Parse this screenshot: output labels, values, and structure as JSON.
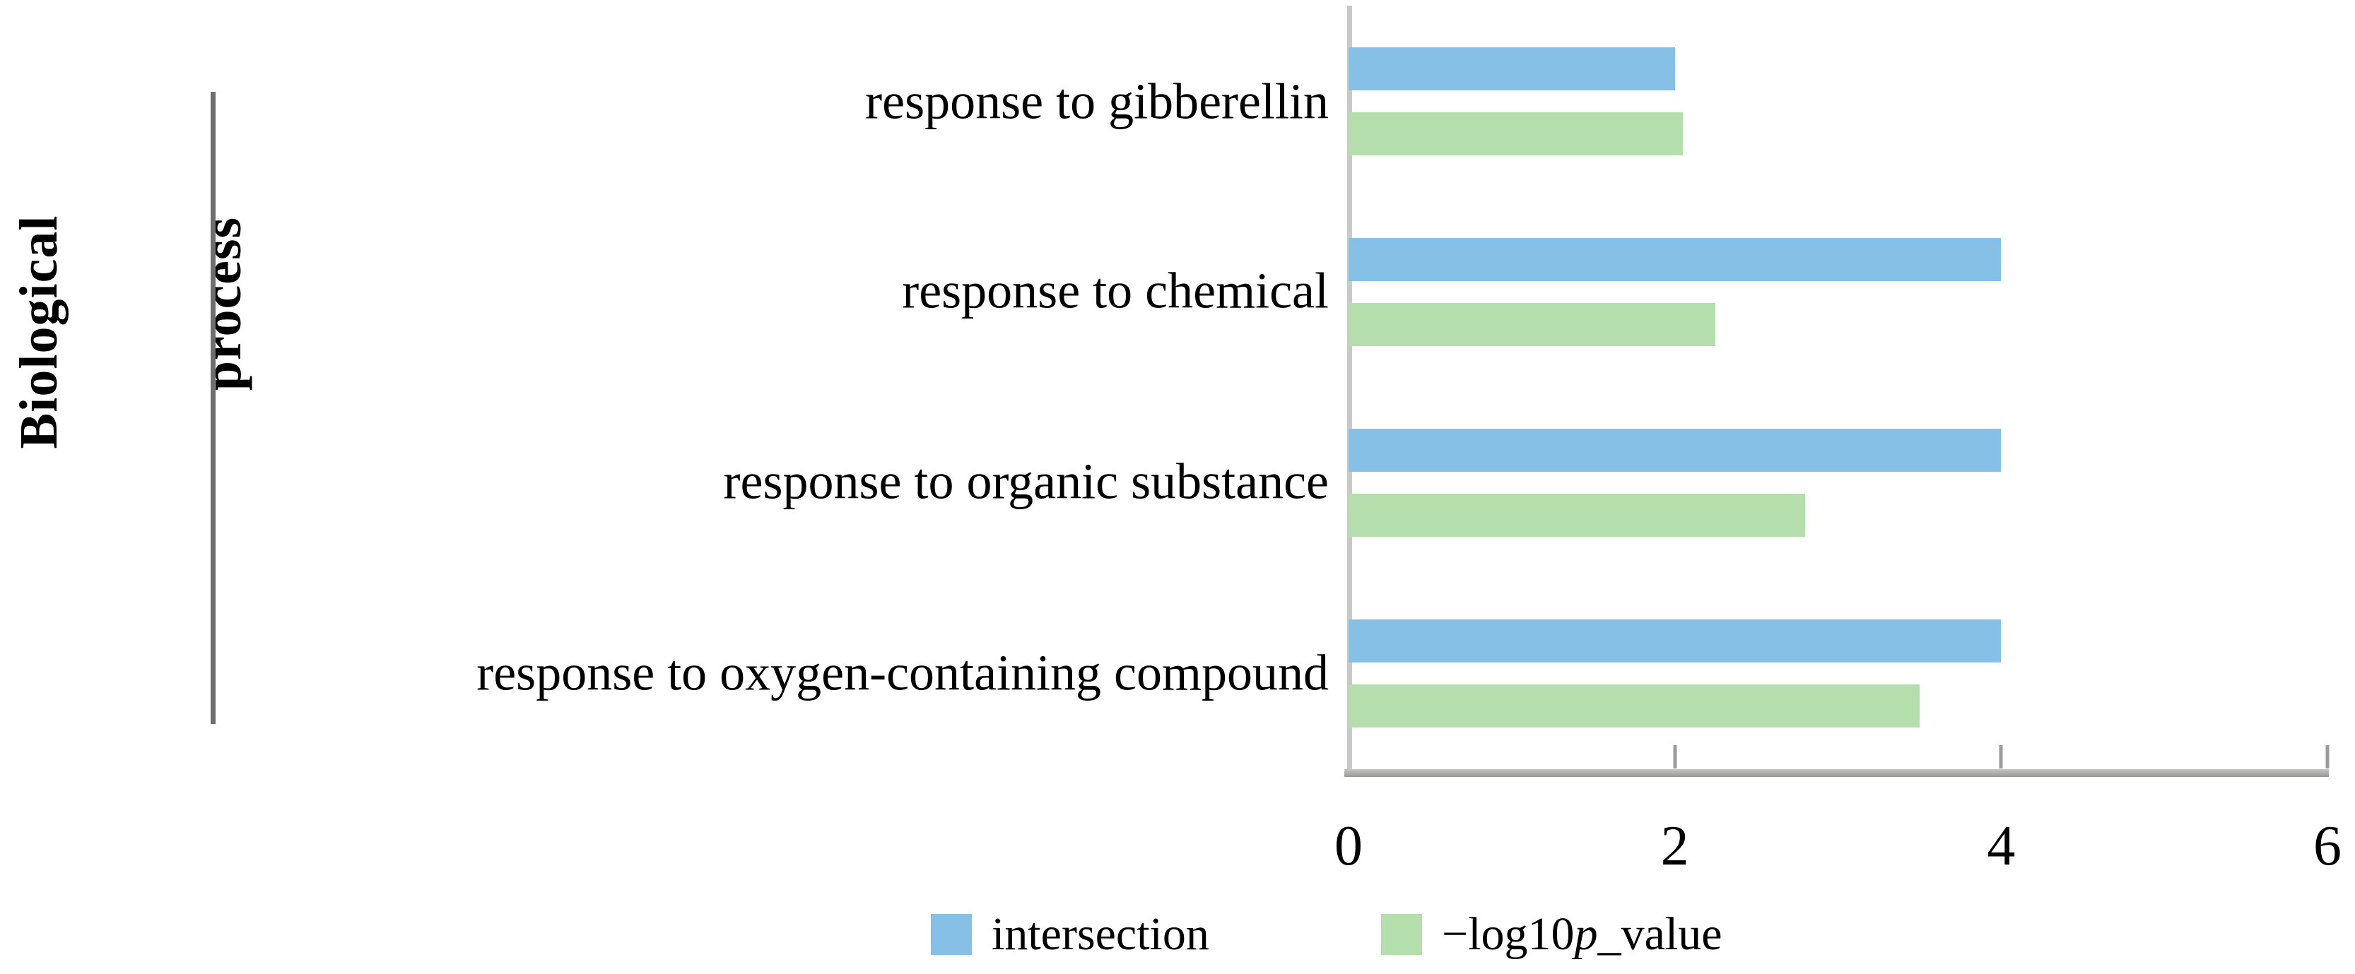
{
  "figure": {
    "y_axis_title_line1": "Biological",
    "y_axis_title_line2": "process"
  },
  "chart_data": {
    "type": "bar",
    "orientation": "horizontal",
    "title": "",
    "xlabel": "",
    "ylabel": "Biological process",
    "categories": [
      "response to gibberellin",
      "response to chemical",
      "response to organic substance",
      "response to oxygen-containing compound"
    ],
    "series": [
      {
        "name": "intersection",
        "color": "#86C0E6",
        "values": [
          2.0,
          4.0,
          4.0,
          4.0
        ]
      },
      {
        "name": "-log10p_value",
        "color": "#B5DEAD",
        "values": [
          2.05,
          2.25,
          2.8,
          3.5
        ]
      }
    ],
    "x_axis": {
      "min": 0,
      "max": 6,
      "ticks": [
        0,
        2,
        4,
        6
      ]
    },
    "grid": "off",
    "legend_position": "bottom"
  },
  "legend": {
    "item1_label": "intersection",
    "item2_prefix": "−log10",
    "item2_italic": "p",
    "item2_suffix": "_value"
  },
  "colors": {
    "bar_blue": "#86C0E6",
    "bar_green": "#B5DEAD",
    "axis_line": "#c9c9c9",
    "bottom_axis": "#a9a7a5",
    "bracket": "#6e6e6e"
  }
}
